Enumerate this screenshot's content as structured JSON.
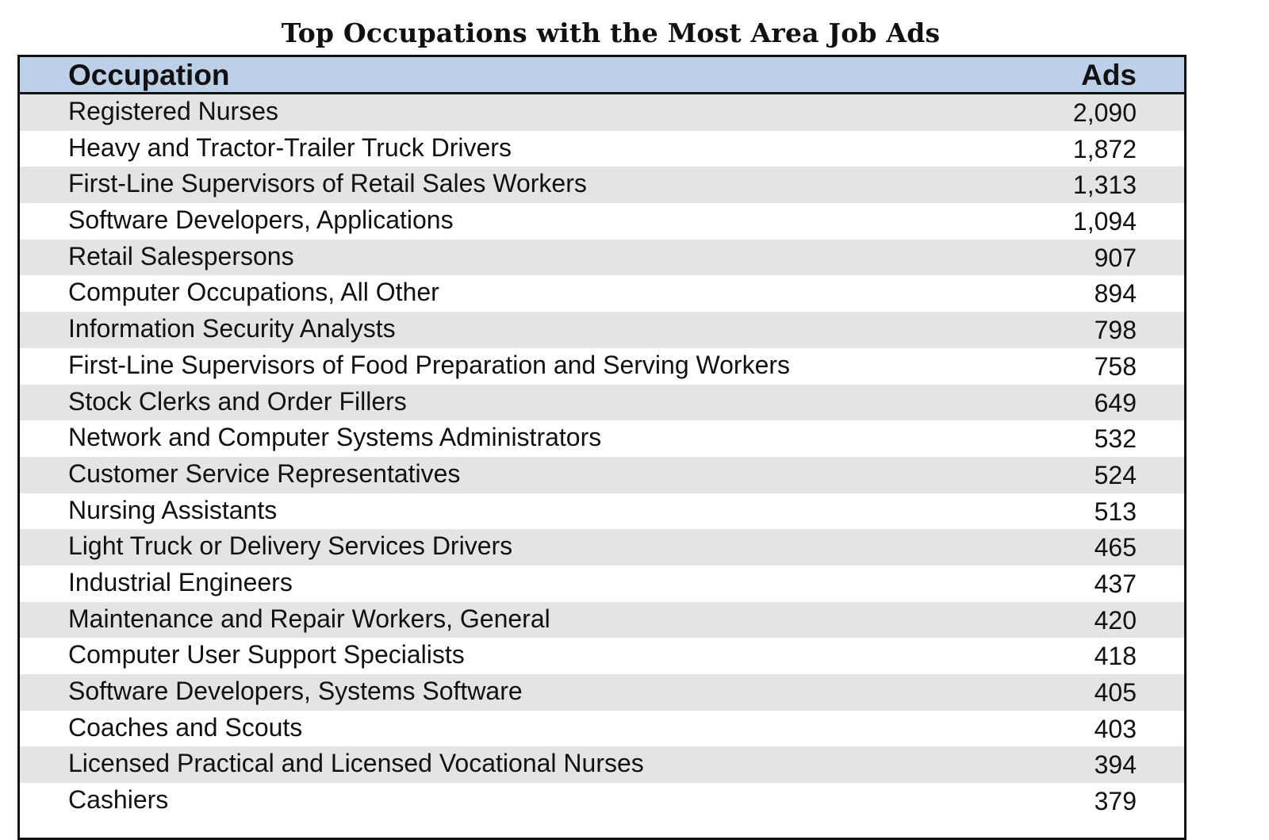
{
  "title": "Top Occupations with the Most Area Job Ads",
  "table": {
    "headers": {
      "occupation": "Occupation",
      "ads": "Ads"
    },
    "rows": [
      {
        "occupation": "Registered Nurses",
        "ads": "2,090"
      },
      {
        "occupation": "Heavy and Tractor-Trailer Truck Drivers",
        "ads": "1,872"
      },
      {
        "occupation": "First-Line Supervisors of Retail Sales Workers",
        "ads": "1,313"
      },
      {
        "occupation": "Software Developers, Applications",
        "ads": "1,094"
      },
      {
        "occupation": "Retail Salespersons",
        "ads": "907"
      },
      {
        "occupation": "Computer Occupations, All Other",
        "ads": "894"
      },
      {
        "occupation": "Information Security Analysts",
        "ads": "798"
      },
      {
        "occupation": "First-Line Supervisors of Food Preparation and Serving Workers",
        "ads": "758"
      },
      {
        "occupation": "Stock Clerks and Order Fillers",
        "ads": "649"
      },
      {
        "occupation": "Network and Computer Systems Administrators",
        "ads": "532"
      },
      {
        "occupation": "Customer Service Representatives",
        "ads": "524"
      },
      {
        "occupation": "Nursing Assistants",
        "ads": "513"
      },
      {
        "occupation": "Light Truck or Delivery Services Drivers",
        "ads": "465"
      },
      {
        "occupation": "Industrial Engineers",
        "ads": "437"
      },
      {
        "occupation": "Maintenance and Repair Workers, General",
        "ads": "420"
      },
      {
        "occupation": "Computer User Support Specialists",
        "ads": "418"
      },
      {
        "occupation": "Software Developers, Systems Software",
        "ads": "405"
      },
      {
        "occupation": "Coaches and Scouts",
        "ads": "403"
      },
      {
        "occupation": "Licensed Practical and Licensed Vocational Nurses",
        "ads": "394"
      },
      {
        "occupation": "Cashiers",
        "ads": "379"
      }
    ]
  },
  "colors": {
    "header_background": "#bcd0e8",
    "stripe_background": "#e4e4e4",
    "border": "#111111"
  }
}
